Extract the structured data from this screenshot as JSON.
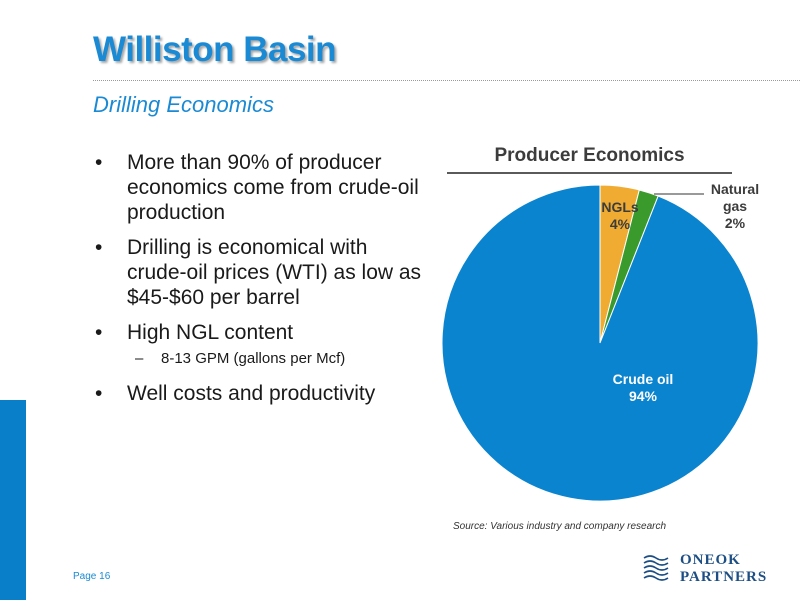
{
  "slide": {
    "title": "Williston Basin",
    "subtitle": "Drilling Economics",
    "page_label": "Page 16",
    "source_note": "Source: Various industry and company research"
  },
  "bullets": [
    {
      "text": "More than 90% of producer economics come from crude-oil production"
    },
    {
      "text": "Drilling is economical with crude-oil prices (WTI) as low as $45-$60 per barrel"
    },
    {
      "text": "High NGL content",
      "sub": [
        "8-13 GPM (gallons per Mcf)"
      ]
    },
    {
      "text": "Well costs and productivity"
    }
  ],
  "bullet_glyph": "•",
  "sub_glyph": "–",
  "logo": {
    "line1": "ONEOK",
    "line2": "PARTNERS",
    "icon": "oneok-wave-logo-icon",
    "color": "#1d4f84"
  },
  "colors": {
    "accent": "#1a8ad4",
    "crude": "#0b84cf",
    "ngl": "#f0ac32",
    "gas": "#3a9b2c"
  },
  "chart_data": {
    "type": "pie",
    "title": "Producer Economics",
    "slices": [
      {
        "label_lines": [
          "NGLs",
          "4%"
        ],
        "value": 4,
        "color": "#f0ac32"
      },
      {
        "label_lines": [
          "Natural",
          "gas",
          "2%"
        ],
        "value": 2,
        "color": "#3a9b2c"
      },
      {
        "label_lines": [
          "Crude oil",
          "94%"
        ],
        "value": 94,
        "color": "#0b84cf"
      }
    ],
    "legend": "none"
  }
}
